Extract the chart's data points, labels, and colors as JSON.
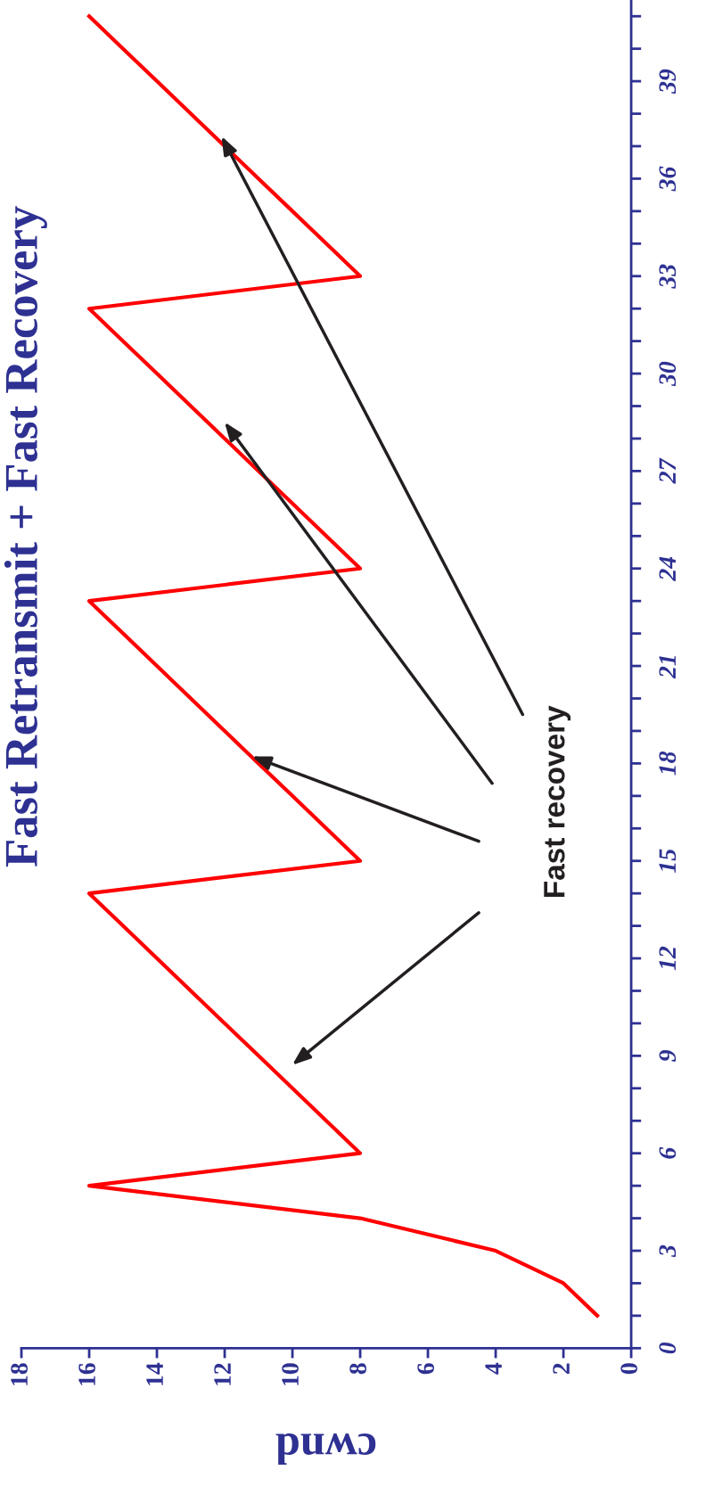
{
  "chart_data": {
    "type": "line",
    "title": "Fast Retransmit + Fast Recovery",
    "xlabel": "cwnd",
    "series": [
      {
        "color": "#ff0000",
        "x": [
          1,
          2,
          4,
          8,
          16,
          8,
          9,
          10,
          11,
          12,
          13,
          14,
          15,
          16,
          8,
          9,
          10,
          11,
          12,
          13,
          14,
          15,
          16,
          8,
          9,
          10,
          11,
          12,
          13,
          14,
          15,
          16,
          8,
          9,
          10,
          11,
          12,
          13,
          14,
          15,
          16
        ],
        "values": [
          1,
          2,
          3,
          4,
          5,
          6,
          7,
          8,
          9,
          10,
          11,
          12,
          13,
          14,
          15,
          16,
          17,
          18,
          19,
          20,
          21,
          22,
          23,
          24,
          25,
          26,
          27,
          28,
          29,
          30,
          31,
          32,
          33,
          34,
          35,
          36,
          37,
          38,
          39,
          40,
          41
        ]
      }
    ],
    "xlim": [
      18,
      0
    ],
    "xticks": [
      0,
      2,
      4,
      6,
      8,
      10,
      12,
      14,
      16,
      18
    ],
    "ylim": [
      0,
      41.5
    ],
    "yticks": [
      0,
      {
        "value": 1,
        "label": null
      },
      {
        "value": 2,
        "label": null
      },
      3,
      {
        "value": 4,
        "label": null
      },
      {
        "value": 5,
        "label": null
      },
      6,
      {
        "value": 7,
        "label": null
      },
      {
        "value": 8,
        "label": null
      },
      9,
      {
        "value": 10,
        "label": null
      },
      {
        "value": 11,
        "label": null
      },
      12,
      {
        "value": 13,
        "label": null
      },
      {
        "value": 14,
        "label": null
      },
      15,
      {
        "value": 16,
        "label": null
      },
      {
        "value": 17,
        "label": null
      },
      18,
      {
        "value": 19,
        "label": null
      },
      {
        "value": 20,
        "label": null
      },
      21,
      {
        "value": 22,
        "label": null
      },
      {
        "value": 23,
        "label": null
      },
      24,
      {
        "value": 25,
        "label": null
      },
      {
        "value": 26,
        "label": null
      },
      27,
      {
        "value": 28,
        "label": null
      },
      {
        "value": 29,
        "label": null
      },
      30,
      {
        "value": 31,
        "label": null
      },
      {
        "value": 32,
        "label": null
      },
      33,
      {
        "value": 34,
        "label": null
      },
      {
        "value": 35,
        "label": null
      },
      36,
      {
        "value": 37,
        "label": null
      },
      {
        "value": 38,
        "label": null
      },
      39,
      {
        "value": 40,
        "label": null
      },
      {
        "value": 41,
        "label": null
      }
    ],
    "annotations": [
      "Fast recovery"
    ],
    "grid": false,
    "legend": false
  }
}
